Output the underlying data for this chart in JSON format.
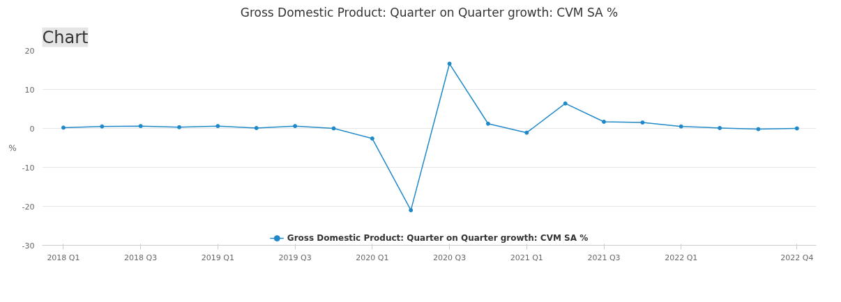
{
  "chart_data": {
    "type": "line",
    "title": "Gross Domestic Product: Quarter on Quarter growth: CVM SA %",
    "ylabel": "%",
    "annotations": [
      "Chart"
    ],
    "categories": [
      "2018 Q1",
      null,
      "2018 Q3",
      null,
      "2019 Q1",
      null,
      "2019 Q3",
      null,
      "2020 Q1",
      null,
      "2020 Q3",
      null,
      "2021 Q1",
      null,
      "2021 Q3",
      null,
      "2022 Q1",
      null,
      null,
      "2022 Q4"
    ],
    "series": [
      {
        "name": "Gross Domestic Product: Quarter on Quarter growth: CVM SA %",
        "color": "#1f88c8",
        "values": [
          0.2,
          0.5,
          0.6,
          0.3,
          0.6,
          0.1,
          0.6,
          0.0,
          -2.6,
          -21.0,
          16.6,
          1.2,
          -1.1,
          6.4,
          1.7,
          1.5,
          0.5,
          0.1,
          -0.2,
          0.0
        ]
      }
    ],
    "ylim": [
      -30,
      20
    ],
    "yticks": [
      -30,
      -20,
      -10,
      0,
      10,
      20
    ],
    "grid": "y",
    "legend": "bottom",
    "marker": "circle",
    "line_style": "solid"
  }
}
